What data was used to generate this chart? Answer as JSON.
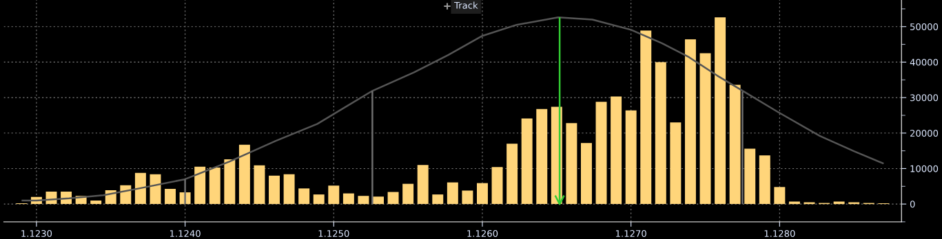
{
  "chart_data": {
    "type": "bar",
    "x": [
      1.1229,
      1.123,
      1.1231,
      1.1232,
      1.1233,
      1.1234,
      1.1235,
      1.1236,
      1.1237,
      1.1238,
      1.1239,
      1.124,
      1.1241,
      1.1242,
      1.1243,
      1.1244,
      1.1245,
      1.1246,
      1.1247,
      1.1248,
      1.1249,
      1.125,
      1.1251,
      1.1252,
      1.1253,
      1.1254,
      1.1255,
      1.1256,
      1.1257,
      1.1258,
      1.1259,
      1.126,
      1.1261,
      1.1262,
      1.1263,
      1.1264,
      1.1265,
      1.1266,
      1.1267,
      1.1268,
      1.1269,
      1.127,
      1.1271,
      1.1272,
      1.1273,
      1.1274,
      1.1275,
      1.1276,
      1.1277,
      1.1278,
      1.1279,
      1.128,
      1.1281,
      1.1282,
      1.1283,
      1.1284,
      1.1285,
      1.1286,
      1.1287
    ],
    "series": [
      {
        "color": "#ffd57a",
        "values": [
          200,
          2000,
          3500,
          3500,
          2300,
          1000,
          3900,
          5300,
          8800,
          8400,
          4300,
          3300,
          10500,
          10300,
          12600,
          16700,
          10900,
          8000,
          8400,
          4400,
          2700,
          5200,
          3000,
          2300,
          2100,
          3400,
          5700,
          11000,
          2700,
          6100,
          3800,
          5900,
          10400,
          17000,
          24100,
          26800,
          27400,
          22800,
          17200,
          28800,
          30300,
          26400,
          48900,
          40000,
          23000,
          46400,
          42500,
          52600,
          33600,
          15600,
          13700,
          4800,
          700,
          500,
          300,
          700,
          500,
          300,
          200
        ]
      },
      {
        "type": "line",
        "color": "#555555",
        "x": [
          1.1229,
          1.123,
          1.12322,
          1.12345,
          1.12369,
          1.124,
          1.1243,
          1.12461,
          1.12489,
          1.12526,
          1.12554,
          1.12577,
          1.126,
          1.12623,
          1.12651,
          1.12674,
          1.127,
          1.12721,
          1.12739,
          1.12758,
          1.12776,
          1.12799,
          1.12827,
          1.1285,
          1.1287
        ],
        "values": [
          1000,
          1000,
          1600,
          2500,
          4400,
          7000,
          12000,
          17800,
          22600,
          31900,
          37100,
          42000,
          47400,
          50500,
          52600,
          52000,
          49100,
          45300,
          41400,
          36200,
          31700,
          25900,
          19200,
          14900,
          11400
        ]
      },
      {
        "type": "line",
        "color": "#6e6e6e",
        "x": [
          1.124,
          1.124
        ],
        "values": [
          0,
          7000
        ]
      },
      {
        "type": "line",
        "color": "#6e6e6e",
        "x": [
          1.12526,
          1.12526
        ],
        "values": [
          0,
          31900
        ]
      },
      {
        "type": "line",
        "color": "#6e6e6e",
        "x": [
          1.12775,
          1.12775
        ],
        "values": [
          0,
          31700
        ]
      },
      {
        "type": "line",
        "color": "#33cc33",
        "x": [
          1.12652,
          1.12652
        ],
        "values": [
          52600,
          0
        ]
      }
    ],
    "xlim": [
      1.12278,
      1.12882
    ],
    "xticks": [
      {
        "value": 1.123,
        "label": "1.1230"
      },
      {
        "value": 1.124,
        "label": "1.1240"
      },
      {
        "value": 1.125,
        "label": "1.1250"
      },
      {
        "value": 1.126,
        "label": "1.1260"
      },
      {
        "value": 1.127,
        "label": "1.1270"
      },
      {
        "value": 1.128,
        "label": "1.1280"
      }
    ],
    "ylim": [
      -5000,
      57500
    ],
    "yticks": [
      {
        "value": -5000,
        "label": null
      },
      0,
      {
        "value": 5000,
        "label": null
      },
      10000,
      {
        "value": 15000,
        "label": null
      },
      20000,
      {
        "value": 25000,
        "label": null
      },
      30000,
      {
        "value": 35000,
        "label": null
      },
      40000,
      {
        "value": 45000,
        "label": null
      },
      50000,
      {
        "value": 55000,
        "label": null
      }
    ],
    "grid": true,
    "annotations": [
      "Track"
    ]
  }
}
